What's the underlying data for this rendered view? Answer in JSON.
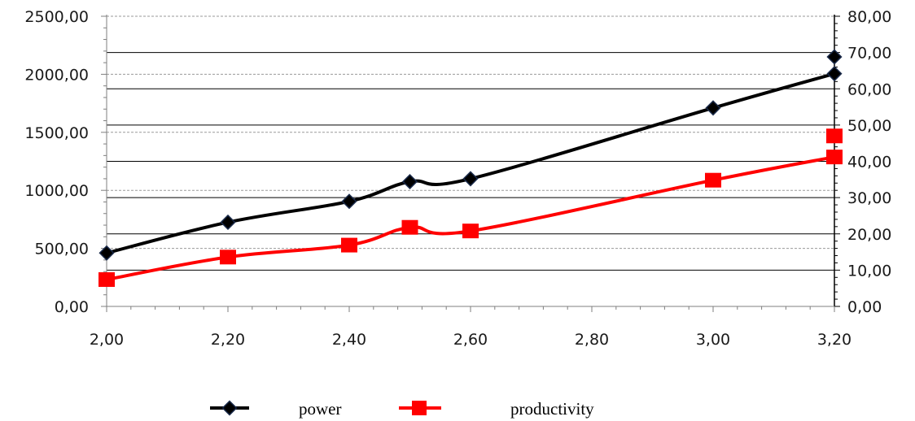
{
  "chart_data": {
    "type": "line",
    "x": [
      2.0,
      2.2,
      2.4,
      2.5,
      2.6,
      3.0,
      3.2
    ],
    "x_ticks": [
      "2,00",
      "2,20",
      "2,40",
      "2,60",
      "2,80",
      "3,00",
      "3,20"
    ],
    "x_tick_values": [
      2.0,
      2.2,
      2.4,
      2.6,
      2.8,
      3.0,
      3.2
    ],
    "xlim": [
      2.0,
      3.2
    ],
    "y_left": {
      "lim": [
        0,
        2500
      ],
      "ticks": [
        "0,00",
        "500,00",
        "1000,00",
        "1500,00",
        "2000,00",
        "2500,00"
      ],
      "tick_values": [
        0,
        500,
        1000,
        1500,
        2000,
        2500
      ]
    },
    "y_right": {
      "lim": [
        0,
        80
      ],
      "ticks": [
        "0,00",
        "10,00",
        "20,00",
        "30,00",
        "40,00",
        "50,00",
        "60,00",
        "70,00",
        "80,00"
      ],
      "tick_values": [
        0,
        10,
        20,
        30,
        40,
        50,
        60,
        70,
        80
      ]
    },
    "series": [
      {
        "name": "power",
        "axis": "left",
        "color": "#000000",
        "marker": "diamond",
        "points": [
          [
            2.0,
            460
          ],
          [
            2.2,
            725
          ],
          [
            2.4,
            905
          ],
          [
            2.5,
            1075
          ],
          [
            2.6,
            1100
          ],
          [
            3.0,
            1710
          ],
          [
            3.2,
            2005
          ]
        ],
        "extra_points": [
          [
            3.2,
            2150
          ]
        ]
      },
      {
        "name": "productivity",
        "axis": "right",
        "color": "#ff0000",
        "marker": "square",
        "points": [
          [
            2.0,
            7.4
          ],
          [
            2.2,
            13.6
          ],
          [
            2.4,
            16.9
          ],
          [
            2.5,
            21.8
          ],
          [
            2.6,
            20.8
          ],
          [
            3.0,
            34.8
          ],
          [
            3.2,
            41.2
          ]
        ],
        "extra_points": [
          [
            3.2,
            47.0
          ]
        ]
      }
    ],
    "grid": {
      "left_dashed": true,
      "right_solid": true
    },
    "legend": {
      "position": "bottom-center",
      "entries": [
        "power",
        "productivity"
      ]
    }
  }
}
